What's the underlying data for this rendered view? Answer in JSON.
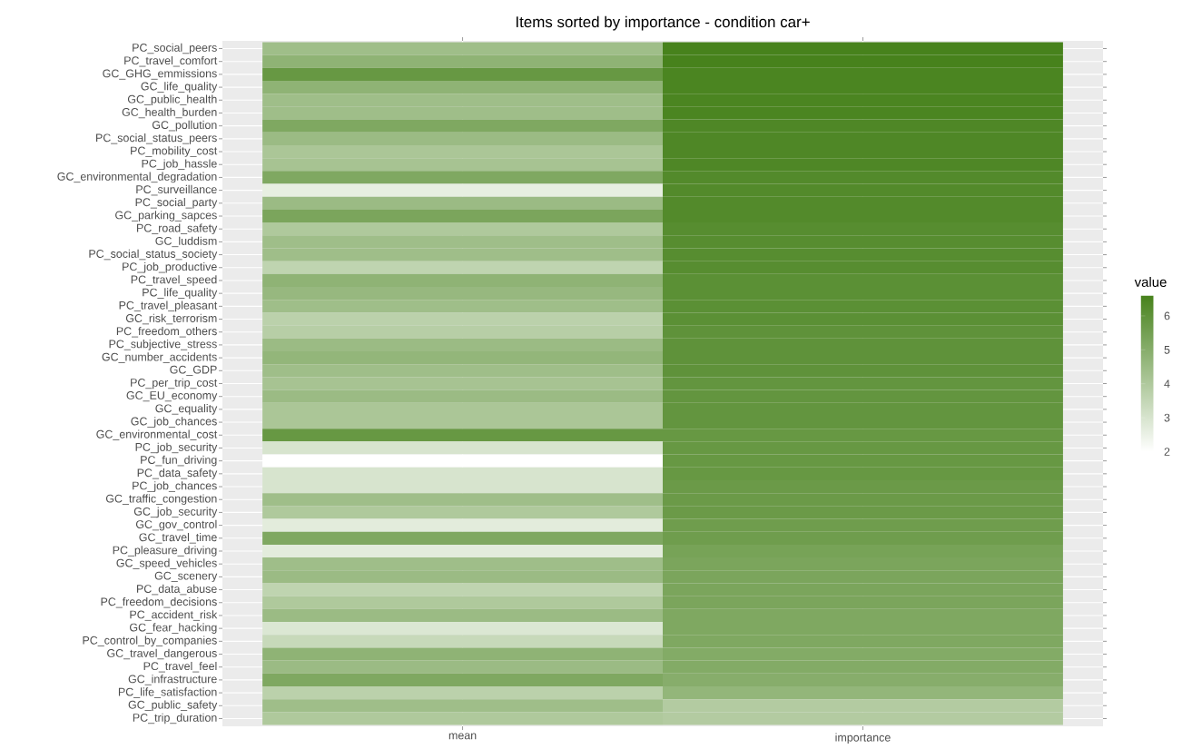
{
  "chart_data": {
    "type": "heatmap",
    "title": "Items sorted by importance - condition car+",
    "categories": [
      "mean",
      "importance"
    ],
    "y_categories": [
      "PC_social_peers",
      "PC_travel_comfort",
      "GC_GHG_emmissions",
      "GC_life_quality",
      "GC_public_health",
      "GC_health_burden",
      "GC_pollution",
      "PC_social_status_peers",
      "PC_mobility_cost",
      "PC_job_hassle",
      "GC_environmental_degradation",
      "PC_surveillance",
      "PC_social_party",
      "GC_parking_sapces",
      "PC_road_safety",
      "GC_luddism",
      "PC_social_status_society",
      "PC_job_productive",
      "PC_travel_speed",
      "PC_life_quality",
      "PC_travel_pleasant",
      "GC_risk_terrorism",
      "PC_freedom_others",
      "PC_subjective_stress",
      "GC_number_accidents",
      "GC_GDP",
      "PC_per_trip_cost",
      "GC_EU_economy",
      "GC_equality",
      "GC_job_chances",
      "GC_environmental_cost",
      "PC_job_security",
      "PC_fun_driving",
      "PC_data_safety",
      "PC_job_chances",
      "GC_traffic_congestion",
      "GC_job_security",
      "GC_gov_control",
      "GC_travel_time",
      "PC_pleasure_driving",
      "GC_speed_vehicles",
      "GC_scenery",
      "PC_data_abuse",
      "PC_freedom_decisions",
      "PC_accident_risk",
      "GC_fear_hacking",
      "PC_control_by_companies",
      "GC_travel_dangerous",
      "PC_travel_feel",
      "GC_infrastructure",
      "PC_life_satisfaction",
      "GC_public_safety",
      "PC_trip_duration"
    ],
    "cells": [
      [
        4.4,
        6.6
      ],
      [
        4.8,
        6.6
      ],
      [
        5.8,
        6.5
      ],
      [
        4.8,
        6.5
      ],
      [
        4.4,
        6.5
      ],
      [
        4.4,
        6.5
      ],
      [
        5.2,
        6.4
      ],
      [
        4.5,
        6.4
      ],
      [
        4.1,
        6.4
      ],
      [
        4.2,
        6.4
      ],
      [
        5.2,
        6.3
      ],
      [
        2.6,
        6.3
      ],
      [
        4.5,
        6.3
      ],
      [
        5.3,
        6.3
      ],
      [
        4.0,
        6.2
      ],
      [
        4.4,
        6.2
      ],
      [
        4.4,
        6.2
      ],
      [
        3.6,
        6.2
      ],
      [
        4.8,
        6.1
      ],
      [
        4.6,
        6.1
      ],
      [
        4.4,
        6.1
      ],
      [
        3.7,
        6.1
      ],
      [
        3.8,
        6.0
      ],
      [
        4.5,
        6.0
      ],
      [
        4.7,
        6.0
      ],
      [
        4.4,
        6.0
      ],
      [
        4.2,
        5.9
      ],
      [
        4.5,
        5.9
      ],
      [
        4.1,
        5.9
      ],
      [
        4.1,
        5.9
      ],
      [
        5.8,
        5.8
      ],
      [
        3.0,
        5.8
      ],
      [
        2.0,
        5.8
      ],
      [
        3.0,
        5.8
      ],
      [
        3.0,
        5.7
      ],
      [
        4.4,
        5.7
      ],
      [
        4.0,
        5.7
      ],
      [
        2.7,
        5.6
      ],
      [
        5.2,
        5.6
      ],
      [
        2.7,
        5.4
      ],
      [
        4.4,
        5.3
      ],
      [
        4.5,
        5.3
      ],
      [
        3.6,
        5.3
      ],
      [
        4.0,
        5.3
      ],
      [
        4.5,
        5.2
      ],
      [
        2.9,
        5.2
      ],
      [
        3.4,
        5.2
      ],
      [
        4.8,
        5.1
      ],
      [
        4.5,
        5.1
      ],
      [
        5.2,
        5.0
      ],
      [
        3.7,
        4.7
      ],
      [
        4.4,
        3.9
      ],
      [
        4.0,
        3.9
      ]
    ],
    "clim": [
      2,
      6.6
    ],
    "cticks": [
      2,
      3,
      4,
      5,
      6
    ],
    "clabel": "value",
    "grid": true
  }
}
